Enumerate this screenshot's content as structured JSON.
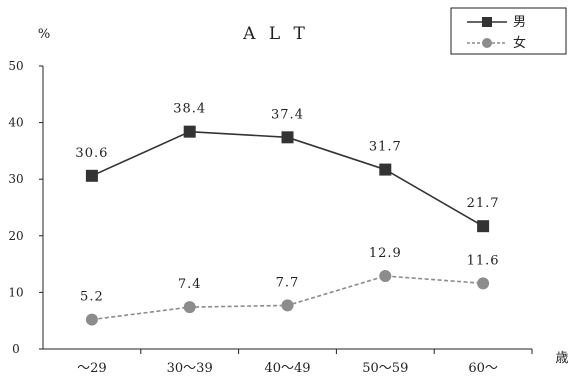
{
  "chart_data": {
    "type": "line",
    "title": "A L T",
    "ylabel": "%",
    "xlabel": "歳",
    "ylim": [
      0,
      50
    ],
    "yticks": [
      0,
      10,
      20,
      30,
      40,
      50
    ],
    "categories": [
      "～29",
      "30～39",
      "40～49",
      "50～59",
      "60～"
    ],
    "legend_position": "top-right",
    "series": [
      {
        "name": "男",
        "values": [
          30.6,
          38.4,
          37.4,
          31.7,
          21.7
        ],
        "labels": [
          "30.6",
          "38.4",
          "37.4",
          "31.7",
          "21.7"
        ],
        "color": "#333333",
        "marker": "square",
        "line": "solid"
      },
      {
        "name": "女",
        "values": [
          5.2,
          7.4,
          7.7,
          12.9,
          11.6
        ],
        "labels": [
          "5.2",
          "7.4",
          "7.7",
          "12.9",
          "11.6"
        ],
        "color": "#8c8c8c",
        "marker": "circle",
        "line": "dashed"
      }
    ]
  }
}
